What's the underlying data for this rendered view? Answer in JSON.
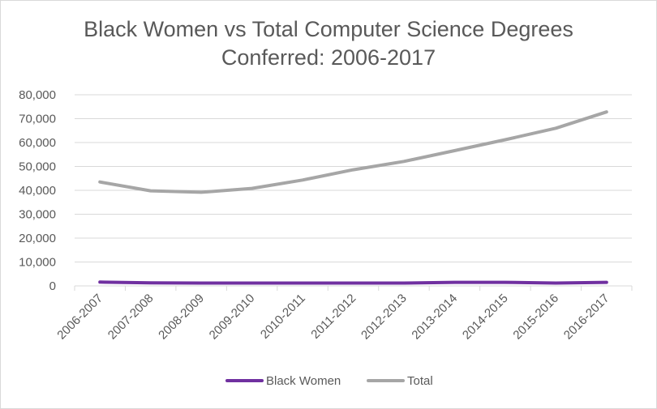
{
  "chart_data": {
    "type": "line",
    "title_line1": "Black Women vs Total Computer Science Degrees",
    "title_line2": "Conferred: 2006-2017",
    "xlabel": "",
    "ylabel": "",
    "ylim": [
      0,
      80000
    ],
    "yticks": [
      "0",
      "10,000",
      "20,000",
      "30,000",
      "40,000",
      "50,000",
      "60,000",
      "70,000",
      "80,000"
    ],
    "ytick_values": [
      0,
      10000,
      20000,
      30000,
      40000,
      50000,
      60000,
      70000,
      80000
    ],
    "grid": true,
    "legend_position": "bottom",
    "categories": [
      "2006-2007",
      "2007-2008",
      "2008-2009",
      "2009-2010",
      "2010-2011",
      "2011-2012",
      "2012-2013",
      "2013-2014",
      "2014-2015",
      "2015-2016",
      "2016-2017"
    ],
    "series": [
      {
        "name": "Black Women",
        "color": "#7030a0",
        "values": [
          1600,
          1300,
          1200,
          1200,
          1200,
          1200,
          1200,
          1500,
          1500,
          1200,
          1500
        ]
      },
      {
        "name": "Total",
        "color": "#a6a6a6",
        "values": [
          43500,
          39800,
          39200,
          40800,
          44300,
          48600,
          52100,
          56600,
          61200,
          66000,
          72800
        ]
      }
    ]
  }
}
